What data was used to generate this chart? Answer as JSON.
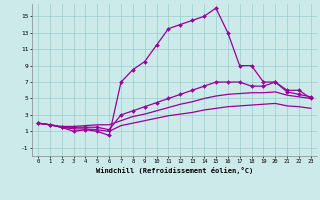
{
  "title": "",
  "xlabel": "Windchill (Refroidissement éolien,°C)",
  "ylabel": "",
  "bg_color": "#cceaea",
  "line_color": "#990099",
  "grid_color": "#99cccc",
  "xlim": [
    -0.5,
    23.5
  ],
  "ylim": [
    -2,
    16.5
  ],
  "xticks": [
    0,
    1,
    2,
    3,
    4,
    5,
    6,
    7,
    8,
    9,
    10,
    11,
    12,
    13,
    14,
    15,
    16,
    17,
    18,
    19,
    20,
    21,
    22,
    23
  ],
  "yticks": [
    -1,
    1,
    3,
    5,
    7,
    9,
    11,
    13,
    15
  ],
  "series": [
    {
      "x": [
        0,
        1,
        2,
        3,
        4,
        5,
        6,
        7,
        8,
        9,
        10,
        11,
        12,
        13,
        14,
        15,
        16,
        17,
        18,
        19,
        20,
        21,
        22,
        23
      ],
      "y": [
        2.0,
        1.8,
        1.5,
        1.0,
        1.2,
        1.0,
        0.5,
        7.0,
        8.5,
        9.5,
        11.5,
        13.5,
        14.0,
        14.5,
        15.0,
        16.0,
        13.0,
        9.0,
        9.0,
        7.0,
        7.0,
        6.0,
        6.0,
        5.0
      ],
      "marker": "D",
      "markersize": 2.0,
      "linewidth": 0.9,
      "has_marker": true
    },
    {
      "x": [
        0,
        1,
        2,
        3,
        4,
        5,
        6,
        7,
        8,
        9,
        10,
        11,
        12,
        13,
        14,
        15,
        16,
        17,
        18,
        19,
        20,
        21,
        22,
        23
      ],
      "y": [
        2.0,
        1.8,
        1.5,
        1.5,
        1.5,
        1.5,
        1.2,
        3.0,
        3.5,
        4.0,
        4.5,
        5.0,
        5.5,
        6.0,
        6.5,
        7.0,
        7.0,
        7.0,
        6.5,
        6.5,
        7.0,
        5.8,
        5.5,
        5.2
      ],
      "marker": "D",
      "markersize": 2.0,
      "linewidth": 0.9,
      "has_marker": true
    },
    {
      "x": [
        0,
        1,
        2,
        3,
        4,
        5,
        6,
        7,
        8,
        9,
        10,
        11,
        12,
        13,
        14,
        15,
        16,
        17,
        18,
        19,
        20,
        21,
        22,
        23
      ],
      "y": [
        2.0,
        1.8,
        1.6,
        1.6,
        1.7,
        1.8,
        1.8,
        2.3,
        2.8,
        3.1,
        3.5,
        3.9,
        4.3,
        4.6,
        5.0,
        5.3,
        5.5,
        5.6,
        5.7,
        5.7,
        5.8,
        5.4,
        5.2,
        5.0
      ],
      "marker": null,
      "markersize": 0,
      "linewidth": 0.9,
      "has_marker": false
    },
    {
      "x": [
        0,
        1,
        2,
        3,
        4,
        5,
        6,
        7,
        8,
        9,
        10,
        11,
        12,
        13,
        14,
        15,
        16,
        17,
        18,
        19,
        20,
        21,
        22,
        23
      ],
      "y": [
        2.0,
        1.8,
        1.5,
        1.3,
        1.3,
        1.2,
        1.0,
        1.7,
        2.0,
        2.3,
        2.6,
        2.9,
        3.1,
        3.3,
        3.6,
        3.8,
        4.0,
        4.1,
        4.2,
        4.3,
        4.4,
        4.1,
        4.0,
        3.8
      ],
      "marker": null,
      "markersize": 0,
      "linewidth": 0.9,
      "has_marker": false
    }
  ]
}
